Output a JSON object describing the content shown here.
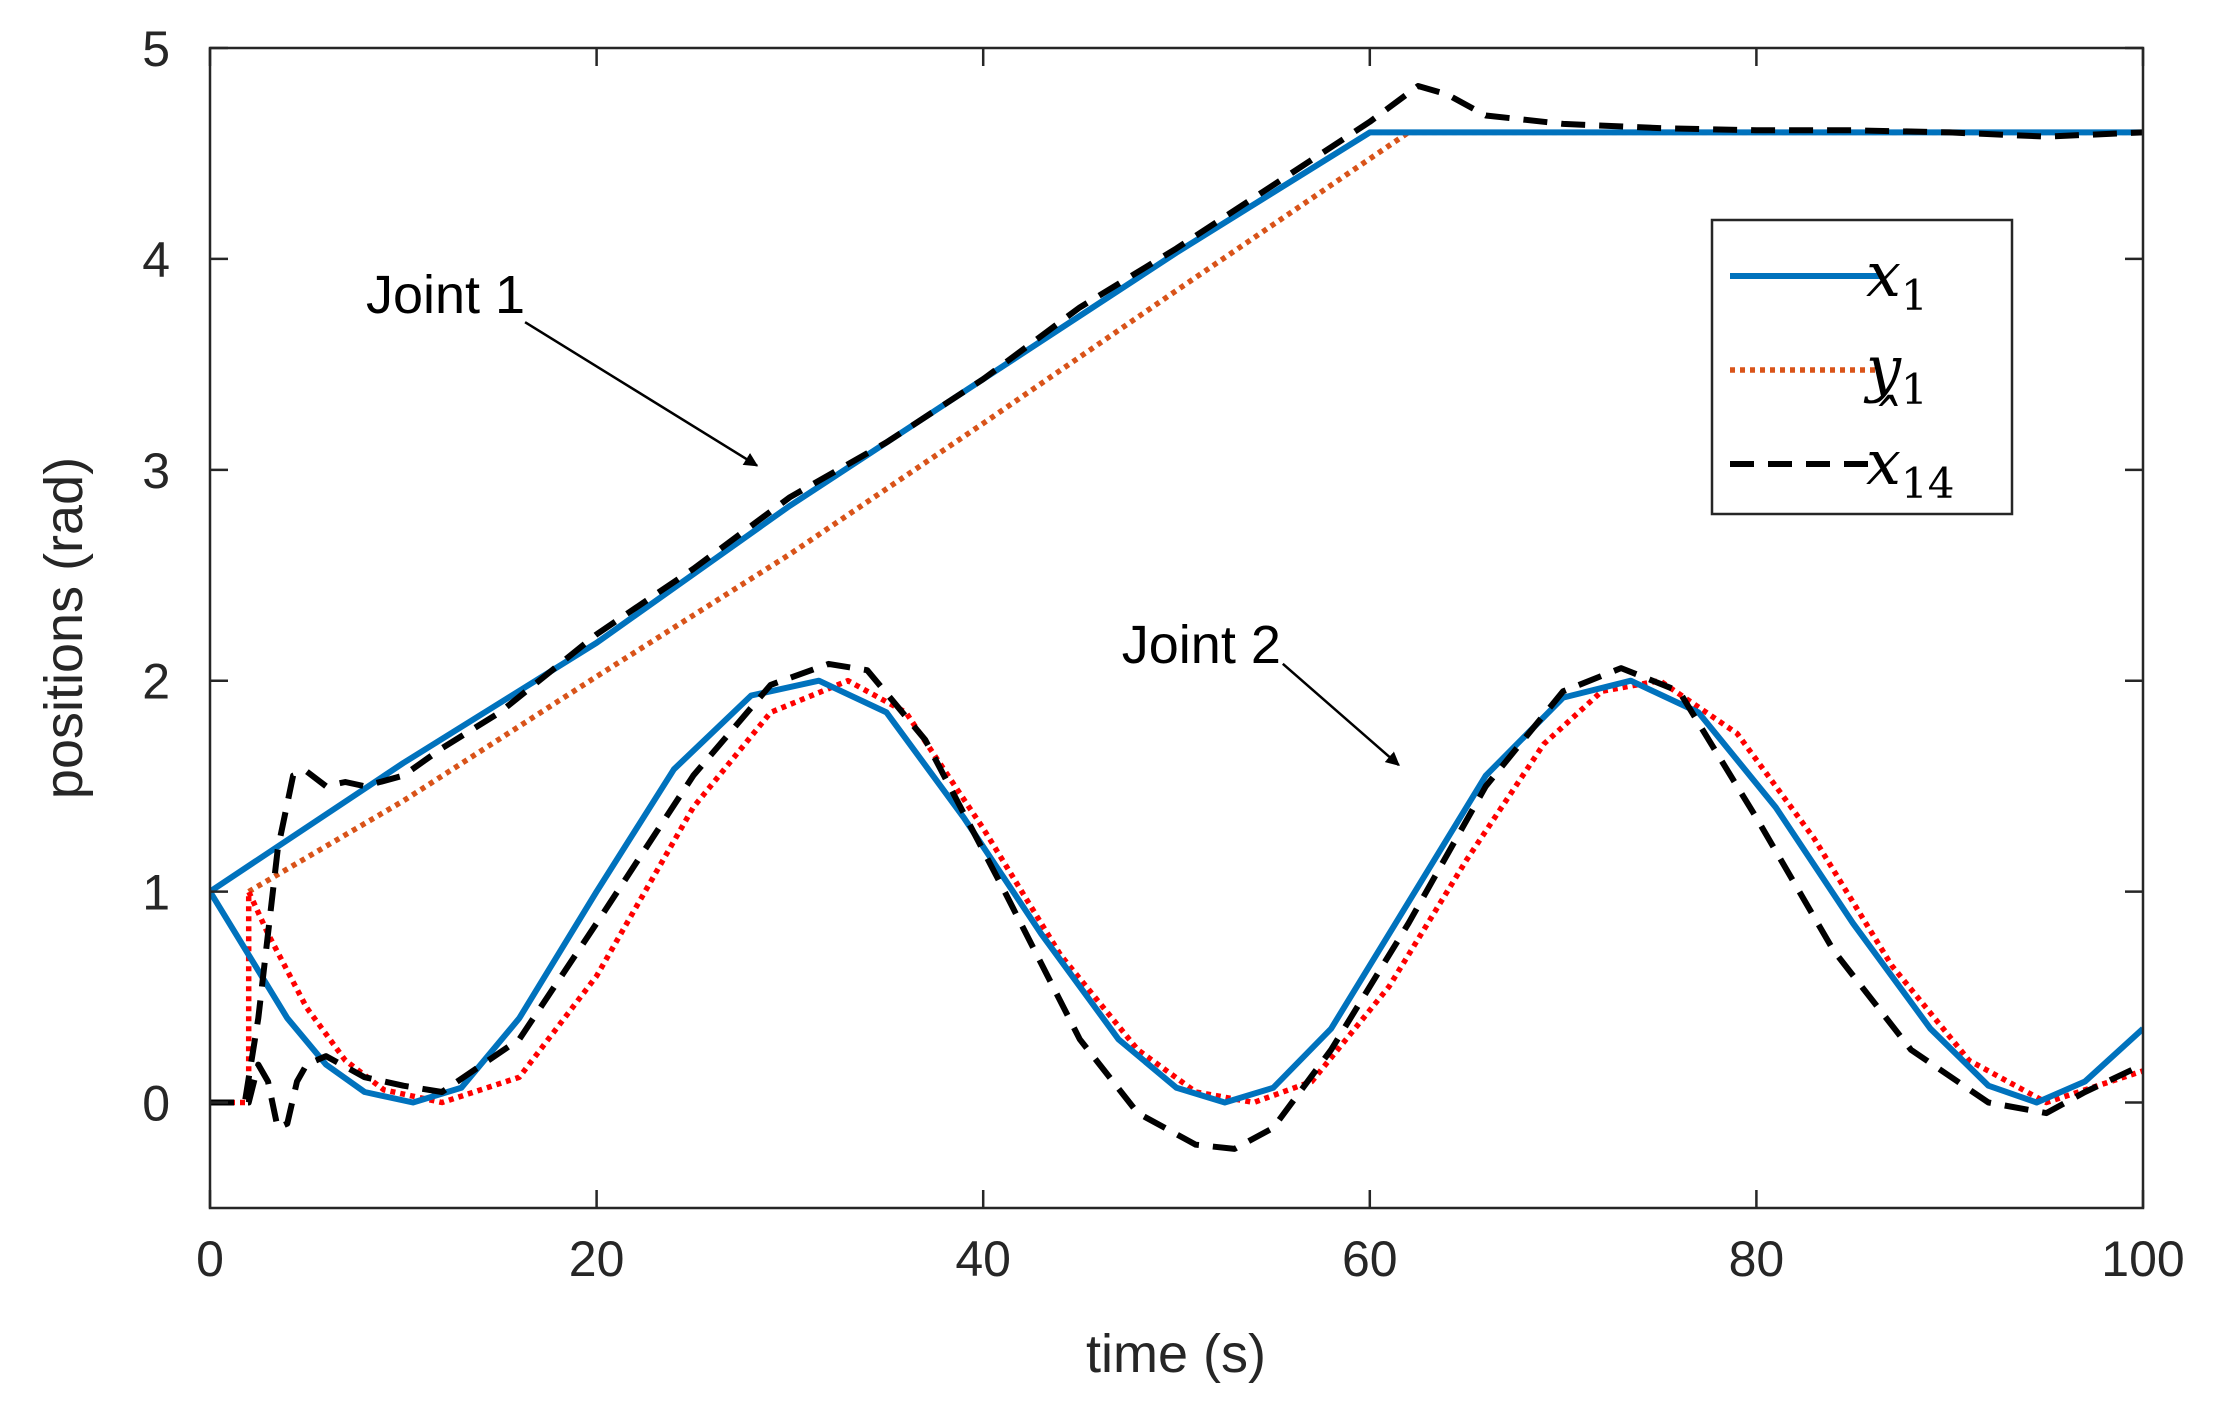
{
  "chart_data": {
    "type": "line",
    "title": "",
    "xlabel": "time (s)",
    "ylabel": "positions (rad)",
    "xlim": [
      0,
      100
    ],
    "ylim": [
      -0.5,
      5
    ],
    "xticks": [
      0,
      20,
      40,
      60,
      80,
      100
    ],
    "yticks": [
      0,
      1,
      2,
      3,
      4,
      5
    ],
    "xtick_labels": [
      "0",
      "20",
      "40",
      "60",
      "80",
      "100"
    ],
    "ytick_labels": [
      "0",
      "1",
      "2",
      "3",
      "4",
      "5"
    ],
    "grid": false,
    "legend_position": "top-right",
    "legend": [
      {
        "base": "x",
        "sub": "1",
        "hat": false,
        "style": "solid",
        "color": "#0072BD"
      },
      {
        "base": "y",
        "sub": "1",
        "hat": false,
        "style": "dotted",
        "color": "#D95319"
      },
      {
        "base": "x",
        "sub": "14",
        "hat": true,
        "style": "dashed",
        "color": "#000000"
      }
    ],
    "annotations": [
      {
        "text": "Joint 1",
        "arrow_from": [
          16.3,
          3.7
        ],
        "arrow_to": [
          28.3,
          3.02
        ]
      },
      {
        "text": "Joint 2",
        "arrow_from": [
          55.5,
          2.08
        ],
        "arrow_to": [
          61.5,
          1.6
        ]
      }
    ],
    "series": [
      {
        "name": "x1 (Joint 1)",
        "color": "#0072BD",
        "style": "solid",
        "x": [
          0,
          10,
          20,
          30,
          40,
          50,
          60,
          61,
          70,
          80,
          90,
          100
        ],
        "y": [
          1.0,
          1.61,
          2.18,
          2.83,
          3.43,
          4.03,
          4.6,
          4.6,
          4.6,
          4.6,
          4.6,
          4.6
        ]
      },
      {
        "name": "y1 (Joint 1)",
        "color": "#D95319",
        "style": "dotted",
        "x": [
          2,
          10,
          20,
          30,
          40,
          50,
          62,
          70,
          80,
          90,
          100
        ],
        "y": [
          1.0,
          1.43,
          2.02,
          2.6,
          3.22,
          3.85,
          4.6,
          4.6,
          4.6,
          4.6,
          4.6
        ]
      },
      {
        "name": "x_hat14 (Joint 1)",
        "color": "#000000",
        "style": "dashed",
        "x": [
          0,
          1.8,
          2.5,
          3.5,
          4.3,
          5,
          6,
          7,
          8,
          10,
          12,
          15,
          20,
          25,
          30,
          35,
          40,
          45,
          50,
          55,
          60,
          62.5,
          64,
          66,
          70,
          75,
          80,
          85,
          90,
          95,
          100
        ],
        "y": [
          0.0,
          0.0,
          0.4,
          1.2,
          1.55,
          1.57,
          1.5,
          1.52,
          1.5,
          1.55,
          1.68,
          1.85,
          2.22,
          2.53,
          2.87,
          3.13,
          3.43,
          3.77,
          4.05,
          4.35,
          4.65,
          4.82,
          4.78,
          4.68,
          4.64,
          4.62,
          4.61,
          4.61,
          4.6,
          4.58,
          4.6
        ]
      },
      {
        "name": "x1 (Joint 2)",
        "color": "#0072BD",
        "style": "solid",
        "x": [
          0,
          2,
          4,
          6,
          8,
          10.5,
          13,
          16,
          20,
          24,
          28,
          31.5,
          35,
          39,
          43,
          47,
          50,
          52.5,
          55,
          58,
          62,
          66,
          70,
          73.5,
          77,
          81,
          85,
          89,
          92,
          94.5,
          97,
          100
        ],
        "y": [
          1.0,
          0.7,
          0.4,
          0.18,
          0.05,
          0.0,
          0.07,
          0.4,
          1.0,
          1.58,
          1.93,
          2.0,
          1.85,
          1.35,
          0.8,
          0.3,
          0.07,
          0.0,
          0.07,
          0.35,
          0.95,
          1.55,
          1.92,
          2.0,
          1.85,
          1.4,
          0.85,
          0.35,
          0.08,
          0.0,
          0.1,
          0.35
        ]
      },
      {
        "name": "y1 (Joint 2)",
        "color": "#FF0000",
        "style": "dotted",
        "x": [
          0,
          2,
          2,
          3,
          5,
          7,
          9,
          12,
          16,
          20,
          25,
          29,
          33,
          36,
          40,
          44,
          48,
          51,
          54,
          57,
          61,
          65,
          69,
          72,
          75,
          79,
          83,
          87,
          91,
          95,
          97,
          100
        ],
        "y": [
          0.0,
          0.0,
          1.0,
          0.8,
          0.45,
          0.2,
          0.06,
          0.0,
          0.12,
          0.6,
          1.4,
          1.85,
          2.0,
          1.85,
          1.3,
          0.7,
          0.25,
          0.05,
          0.0,
          0.1,
          0.55,
          1.15,
          1.7,
          1.95,
          2.0,
          1.75,
          1.25,
          0.65,
          0.2,
          0.0,
          0.06,
          0.15
        ]
      },
      {
        "name": "x_hat14 (Joint 2)",
        "color": "#000000",
        "style": "dashed",
        "x": [
          0,
          2,
          2.5,
          3,
          3.5,
          4,
          4.5,
          5,
          6,
          8,
          10,
          12,
          16,
          20,
          25,
          29,
          32,
          34,
          37,
          41,
          45,
          48,
          51,
          53,
          55,
          58,
          62,
          66,
          70,
          73,
          76,
          80,
          84,
          88,
          92,
          95,
          97,
          100
        ],
        "y": [
          0.0,
          0.0,
          0.18,
          0.1,
          -0.12,
          -0.1,
          0.1,
          0.18,
          0.22,
          0.12,
          0.08,
          0.05,
          0.3,
          0.85,
          1.55,
          1.98,
          2.08,
          2.05,
          1.72,
          1.02,
          0.3,
          -0.05,
          -0.2,
          -0.22,
          -0.12,
          0.25,
          0.85,
          1.5,
          1.95,
          2.06,
          1.95,
          1.35,
          0.72,
          0.25,
          0.0,
          -0.05,
          0.05,
          0.18
        ]
      }
    ]
  }
}
